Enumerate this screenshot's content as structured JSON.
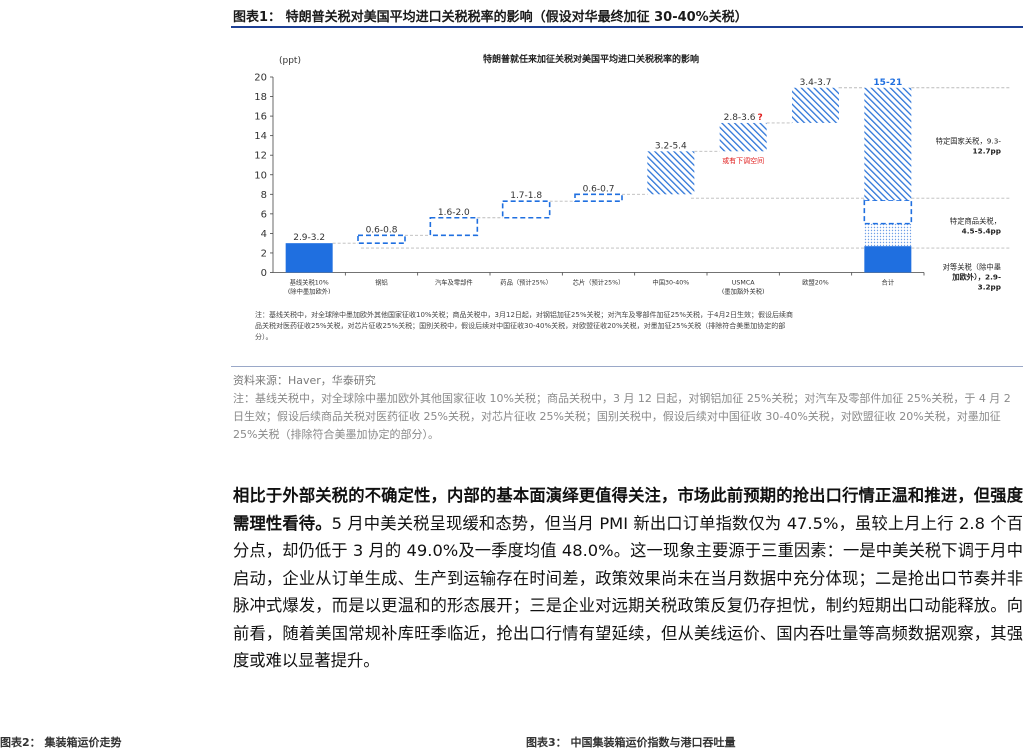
{
  "figure": {
    "title": "图表1： 特朗普关税对美国平均进口关税税率的影响（假设对华最终加征 30-40%关税）"
  },
  "chart_data": {
    "type": "bar",
    "title": "特朗普就任来加征关税对美国平均进口关税税率的影响",
    "ylabel": "(ppt)",
    "ylim": [
      0,
      20
    ],
    "yticks": [
      0,
      2,
      4,
      6,
      8,
      10,
      12,
      14,
      16,
      18,
      20
    ],
    "categories": [
      {
        "label": "基线关税10%\n(除中墨加欧外)",
        "bottom": 0,
        "top": 3.0,
        "value_label": "2.9-3.2",
        "style": "solid"
      },
      {
        "label": "钢铝",
        "bottom": 3.0,
        "top": 3.8,
        "value_label": "0.6-0.8",
        "style": "dashed"
      },
      {
        "label": "汽车及零部件",
        "bottom": 3.8,
        "top": 5.6,
        "value_label": "1.6-2.0",
        "style": "dashed"
      },
      {
        "label": "药品（预计25%）",
        "bottom": 5.6,
        "top": 7.3,
        "value_label": "1.7-1.8",
        "style": "dashed"
      },
      {
        "label": "芯片（预计25%）",
        "bottom": 7.3,
        "top": 8.0,
        "value_label": "0.6-0.7",
        "style": "dashed"
      },
      {
        "label": "中国30-40%",
        "bottom": 8.0,
        "top": 12.4,
        "value_label": "3.2-5.4",
        "style": "hatched"
      },
      {
        "label": "USMCA\n(墨加豁外关税)",
        "bottom": 12.4,
        "top": 15.3,
        "value_label": "2.8-3.6",
        "value_mark": "?",
        "style": "hatched"
      },
      {
        "label": "欧盟20%",
        "bottom": 15.3,
        "top": 18.9,
        "value_label": "3.4-3.7",
        "style": "hatched"
      },
      {
        "label": "合计",
        "total": true,
        "value_label": "15-21",
        "segments": [
          {
            "bottom": 0,
            "top": 2.7,
            "style": "solid"
          },
          {
            "bottom": 2.7,
            "top": 5.0,
            "style": "dotted"
          },
          {
            "bottom": 5.0,
            "top": 7.4,
            "style": "dashed"
          },
          {
            "bottom": 7.4,
            "top": 18.9,
            "style": "hatched"
          }
        ]
      }
    ],
    "annotations": {
      "usmca_note": "或有下调空间",
      "country": [
        "特定国家关税，9.3-",
        "12.7pp"
      ],
      "product": [
        "特定商品关税，",
        "4.5-5.4pp"
      ],
      "reciprocal": [
        "对等关税（除中墨",
        "加欧外），2.9-",
        "3.2pp"
      ]
    },
    "note": "注：基线关税中，对全球除中墨加欧外其他国家征收10%关税；商品关税中，3月12日起，对钢铝加征25%关税；对汽车及零部件加征25%关税，于4月2日生效；假设后续商品关税对医药征收25%关税，对芯片征收25%关税；国别关税中，假设后续对中国征收30-40%关税，对欧盟征收20%关税，对墨加征25%关税（排除符合美墨加协定的部分）。",
    "colors": {
      "solid": "#1f6fe0",
      "hatch": "#2c74d8",
      "dash": "#1f6fe0",
      "value_label": "#333333",
      "total_label": "#1f6fe0",
      "question": "#e02020",
      "note_red": "#e02020",
      "grid": "#bbbbbb"
    }
  },
  "source": "资料来源：Haver，华泰研究",
  "footnote": "注：基线关税中，对全球除中墨加欧外其他国家征收 10%关税；商品关税中，3 月 12 日起，对钢铝加征 25%关税；对汽车及零部件加征 25%关税，于 4 月 2 日生效；假设后续商品关税对医药征收 25%关税，对芯片征收 25%关税；国别关税中，假设后续对中国征收 30-40%关税，对欧盟征收 20%关税，对墨加征 25%关税（排除符合美墨加协定的部分）。",
  "body": {
    "bold": "相比于外部关税的不确定性，内部的基本面演绎更值得关注，市场此前预期的抢出口行情正温和推进，但强度需理性看待。",
    "normal": "5 月中美关税呈现缓和态势，但当月 PMI 新出口订单指数仅为 47.5%，虽较上月上行 2.8 个百分点，却仍低于 3 月的 49.0%及一季度均值 48.0%。这一现象主要源于三重因素：一是中美关税下调于月中启动，企业从订单生成、生产到运输存在时间差，政策效果尚未在当月数据中充分体现；二是抢出口节奏并非脉冲式爆发，而是以更温和的形态展开；三是企业对远期关税政策反复仍存担忧，制约短期出口动能释放。向前看，随着美国常规补库旺季临近，抢出口行情有望延续，但从美线运价、国内吞吐量等高频数据观察，其强度或难以显著提升。"
  },
  "next_figures": {
    "left": "图表2： 集装箱运价走势",
    "right": "图表3： 中国集装箱运价指数与港口吞吐量"
  }
}
